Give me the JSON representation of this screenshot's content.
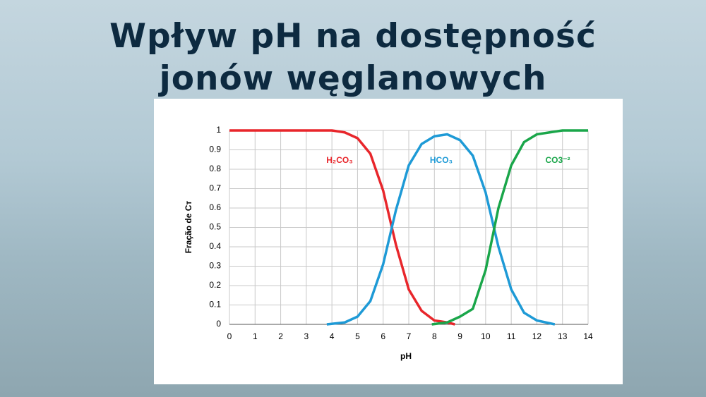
{
  "slide": {
    "title_lines": [
      "Wpływ pH na dostępność",
      "jonów węglanowych"
    ]
  },
  "chart_data": {
    "type": "line",
    "x_label": "pH",
    "y_label": "Fração de Cᴛ",
    "xlim": [
      0,
      14
    ],
    "xticks": [
      0,
      1,
      2,
      3,
      4,
      5,
      6,
      7,
      8,
      9,
      10,
      11,
      12,
      13,
      14
    ],
    "ylim": [
      0,
      1
    ],
    "yticks": [
      0,
      0.1,
      0.2,
      0.3,
      0.4,
      0.5,
      0.6,
      0.7,
      0.8,
      0.9,
      1
    ],
    "grid": true,
    "series": [
      {
        "name": "H₂CO₃",
        "color": "#e8262b",
        "x": [
          0,
          1,
          2,
          3,
          4,
          4.5,
          5,
          5.5,
          6,
          6.5,
          7,
          7.5,
          8,
          8.5,
          8.8
        ],
        "values": [
          1,
          1,
          1,
          1,
          1,
          0.99,
          0.96,
          0.88,
          0.69,
          0.41,
          0.18,
          0.07,
          0.02,
          0.01,
          0
        ]
      },
      {
        "name": "HCO₃",
        "color": "#1e9ad6",
        "x": [
          3.8,
          4.5,
          5,
          5.5,
          6,
          6.5,
          7,
          7.5,
          8,
          8.5,
          9,
          9.5,
          10,
          10.5,
          11,
          11.5,
          12,
          12.7
        ],
        "values": [
          0,
          0.01,
          0.04,
          0.12,
          0.31,
          0.59,
          0.82,
          0.93,
          0.97,
          0.98,
          0.95,
          0.87,
          0.68,
          0.4,
          0.18,
          0.06,
          0.02,
          0
        ]
      },
      {
        "name": "CO3⁻²",
        "color": "#1aa64a",
        "x": [
          7.9,
          8.5,
          9,
          9.5,
          10,
          10.5,
          11,
          11.5,
          12,
          12.5,
          13,
          13.5,
          14
        ],
        "values": [
          0,
          0.01,
          0.04,
          0.08,
          0.28,
          0.6,
          0.82,
          0.94,
          0.98,
          0.99,
          1,
          1,
          1
        ]
      }
    ]
  }
}
